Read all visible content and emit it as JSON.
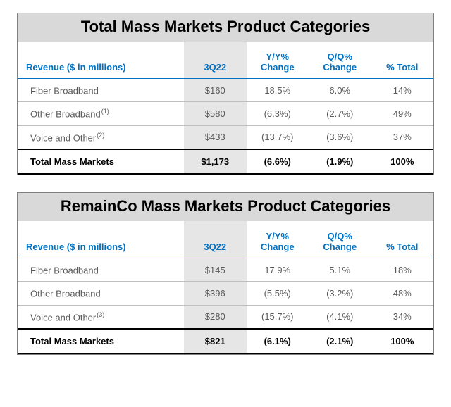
{
  "tables": [
    {
      "title": "Total Mass Markets Product Categories",
      "header": {
        "label": "Revenue ($ in millions)",
        "period": "3Q22",
        "yy": "Y/Y% Change",
        "qq": "Q/Q% Change",
        "total": "% Total"
      },
      "rows": [
        {
          "label": "Fiber Broadband",
          "sup": "",
          "period": "$160",
          "yy": "18.5%",
          "qq": "6.0%",
          "total": "14%"
        },
        {
          "label": "Other Broadband",
          "sup": "(1)",
          "period": "$580",
          "yy": "(6.3%)",
          "qq": "(2.7%)",
          "total": "49%"
        },
        {
          "label": "Voice and Other",
          "sup": "(2)",
          "period": "$433",
          "yy": "(13.7%)",
          "qq": "(3.6%)",
          "total": "37%"
        }
      ],
      "total_row": {
        "label": "Total Mass Markets",
        "period": "$1,173",
        "yy": "(6.6%)",
        "qq": "(1.9%)",
        "total": "100%"
      }
    },
    {
      "title": "RemainCo Mass Markets Product Categories",
      "header": {
        "label": "Revenue ($ in millions)",
        "period": "3Q22",
        "yy": "Y/Y% Change",
        "qq": "Q/Q% Change",
        "total": "% Total"
      },
      "rows": [
        {
          "label": "Fiber Broadband",
          "sup": "",
          "period": "$145",
          "yy": "17.9%",
          "qq": "5.1%",
          "total": "18%"
        },
        {
          "label": "Other Broadband",
          "sup": "",
          "period": "$396",
          "yy": "(5.5%)",
          "qq": "(3.2%)",
          "total": "48%"
        },
        {
          "label": "Voice and Other",
          "sup": "(3)",
          "period": "$280",
          "yy": "(15.7%)",
          "qq": "(4.1%)",
          "total": "34%"
        }
      ],
      "total_row": {
        "label": "Total Mass Markets",
        "period": "$821",
        "yy": "(6.1%)",
        "qq": "(2.1%)",
        "total": "100%"
      }
    }
  ],
  "colors": {
    "header_text": "#0070c0",
    "title_bg": "#d9d9d9",
    "period_col_bg": "#e6e6e6",
    "body_text": "#595959",
    "border": "#7f7f7f",
    "row_border": "#bfbfbf",
    "total_border": "#000000"
  }
}
